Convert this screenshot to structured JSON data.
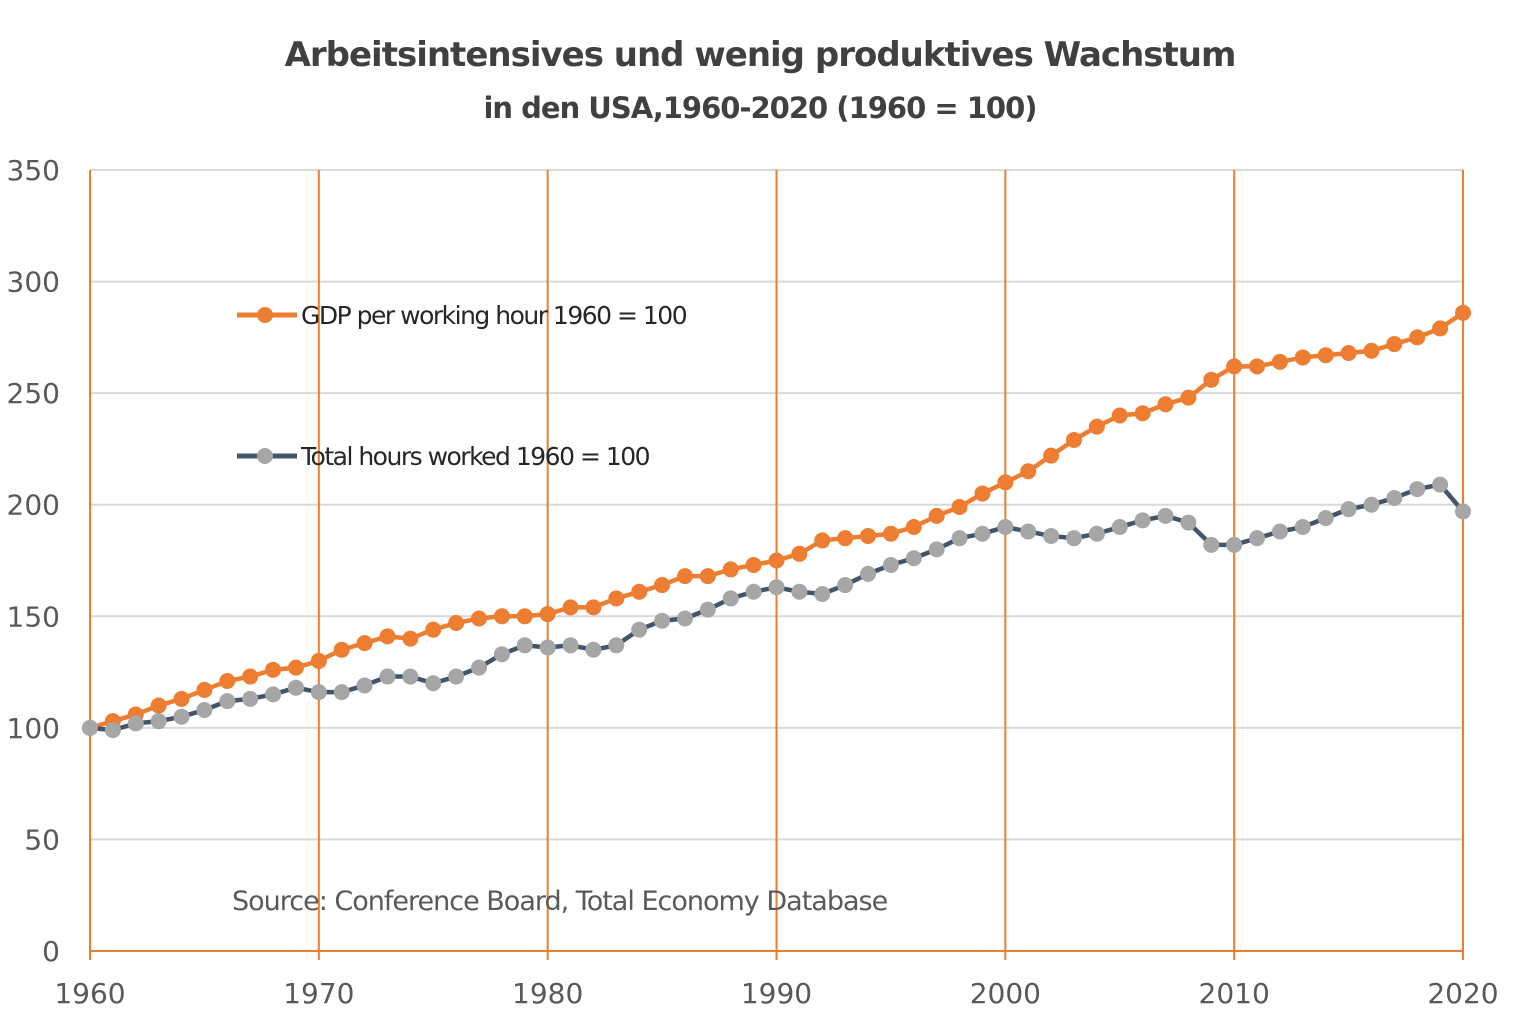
{
  "chart_data": {
    "type": "line",
    "title": "Arbeitsintensives und wenig produktives Wachstum",
    "subtitle": "in den USA,1960-2020 (1960 = 100)",
    "ylim": [
      0,
      350
    ],
    "xlim": [
      1960,
      2020
    ],
    "y_ticks": [
      "0",
      "50",
      "100",
      "150",
      "200",
      "250",
      "300",
      "350"
    ],
    "x_ticks": [
      "1960",
      "1970",
      "1980",
      "1990",
      "2000",
      "2010",
      "2020"
    ],
    "horizontal_grid": true,
    "vertical_grid": true,
    "legend_position": "upper-left inside plot",
    "annotation": "Source: Conference Board, Total Economy Database",
    "colors": {
      "gdp_line": "#ED7D31",
      "gdp_marker": "#ED7D31",
      "hours_line": "#44546A",
      "hours_marker": "#A6A6A6",
      "vertical_grid": "#ED7D31",
      "horizontal_grid": "#D9D9D9"
    },
    "x": [
      1960,
      1961,
      1962,
      1963,
      1964,
      1965,
      1966,
      1967,
      1968,
      1969,
      1970,
      1971,
      1972,
      1973,
      1974,
      1975,
      1976,
      1977,
      1978,
      1979,
      1980,
      1981,
      1982,
      1983,
      1984,
      1985,
      1986,
      1987,
      1988,
      1989,
      1990,
      1991,
      1992,
      1993,
      1994,
      1995,
      1996,
      1997,
      1998,
      1999,
      2000,
      2001,
      2002,
      2003,
      2004,
      2005,
      2006,
      2007,
      2008,
      2009,
      2010,
      2011,
      2012,
      2013,
      2014,
      2015,
      2016,
      2017,
      2018,
      2019,
      2020
    ],
    "series": [
      {
        "name": "GDP per working hour 1960 = 100",
        "values": [
          100,
          103,
          106,
          110,
          113,
          117,
          121,
          123,
          126,
          127,
          130,
          135,
          138,
          141,
          140,
          144,
          147,
          149,
          150,
          150,
          151,
          154,
          154,
          158,
          161,
          164,
          168,
          168,
          171,
          173,
          175,
          178,
          184,
          185,
          186,
          187,
          190,
          195,
          199,
          205,
          210,
          215,
          222,
          229,
          235,
          240,
          241,
          245,
          248,
          256,
          262,
          262,
          264,
          266,
          267,
          268,
          269,
          272,
          275,
          279,
          286
        ]
      },
      {
        "name": "Total hours worked 1960 = 100",
        "values": [
          100,
          99,
          102,
          103,
          105,
          108,
          112,
          113,
          115,
          118,
          116,
          116,
          119,
          123,
          123,
          120,
          123,
          127,
          133,
          137,
          136,
          137,
          135,
          137,
          144,
          148,
          149,
          153,
          158,
          161,
          163,
          161,
          160,
          164,
          169,
          173,
          176,
          180,
          185,
          187,
          190,
          188,
          186,
          185,
          187,
          190,
          193,
          195,
          192,
          182,
          182,
          185,
          188,
          190,
          194,
          198,
          200,
          203,
          207,
          209,
          197
        ]
      }
    ]
  }
}
